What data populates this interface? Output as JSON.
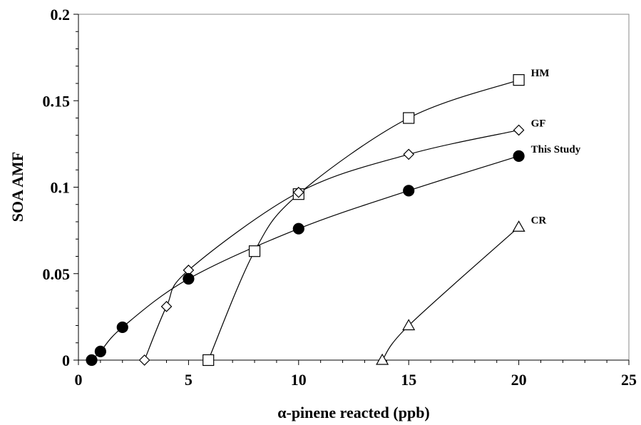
{
  "chart_data": {
    "type": "line",
    "title": "",
    "xlabel": "α-pinene reacted (ppb)",
    "ylabel": "SOA AMF",
    "xlim": [
      0,
      25
    ],
    "ylim": [
      0,
      0.2
    ],
    "x_ticks": [
      "0",
      "5",
      "10",
      "15",
      "20",
      "25"
    ],
    "y_ticks": [
      "0",
      "0.05",
      "0.1",
      "0.15",
      "0.2"
    ],
    "grid": false,
    "legend": "inline labels at series ends",
    "series": [
      {
        "name": "HM",
        "marker": "square-open",
        "x": [
          5.9,
          8,
          10,
          15,
          20
        ],
        "y": [
          0,
          0.063,
          0.096,
          0.14,
          0.162
        ]
      },
      {
        "name": "GF",
        "marker": "diamond-open",
        "x": [
          3,
          4,
          5,
          10,
          15,
          20
        ],
        "y": [
          0,
          0.031,
          0.052,
          0.097,
          0.119,
          0.133
        ]
      },
      {
        "name": "This Study",
        "marker": "circle-filled",
        "x": [
          0.6,
          1,
          2,
          5,
          10,
          15,
          20
        ],
        "y": [
          0,
          0.005,
          0.019,
          0.047,
          0.076,
          0.098,
          0.118
        ]
      },
      {
        "name": "CR",
        "marker": "triangle-open",
        "x": [
          13.8,
          15,
          20
        ],
        "y": [
          0,
          0.02,
          0.077
        ]
      }
    ]
  }
}
